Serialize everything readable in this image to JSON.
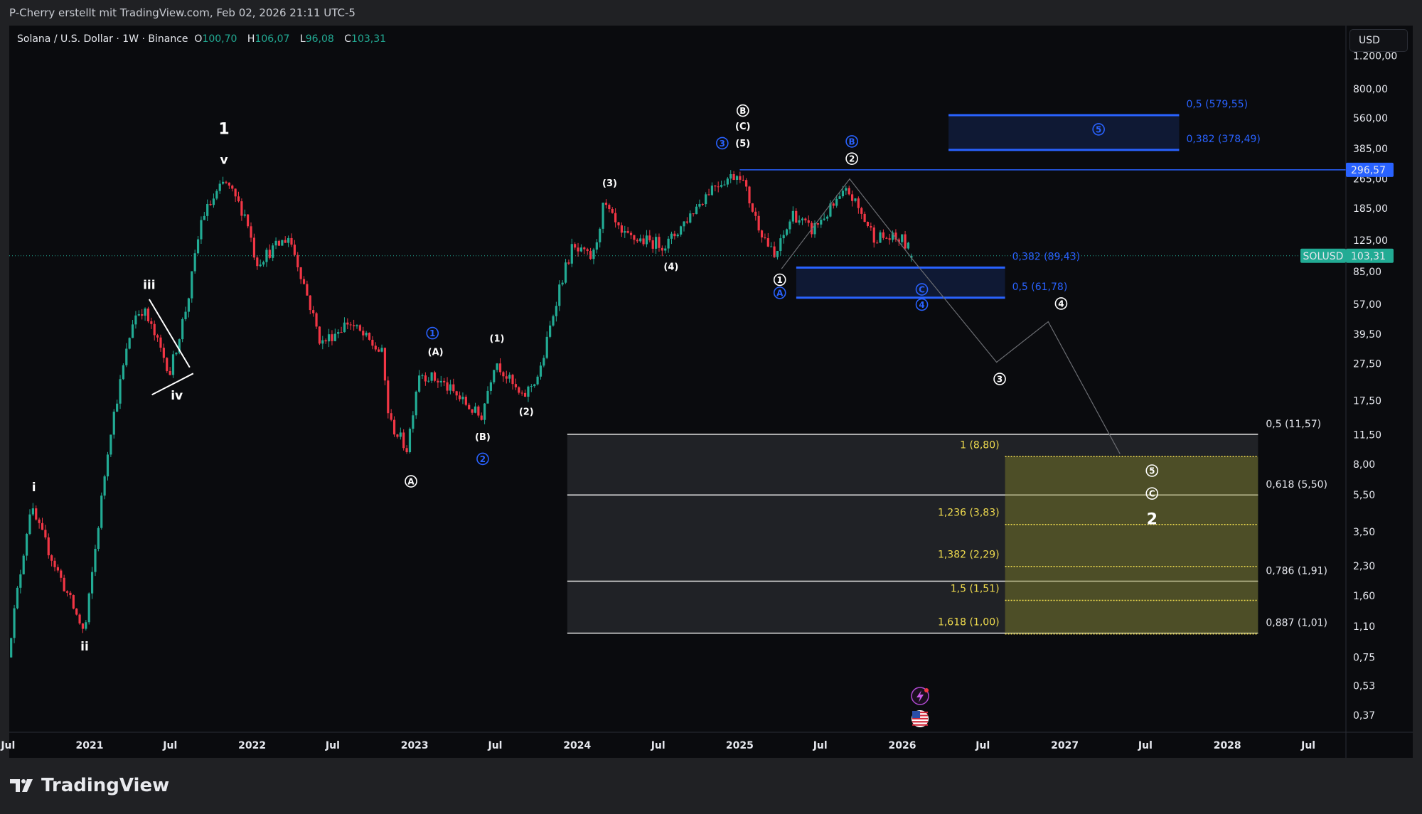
{
  "header": {
    "credit": "P-Cherry erstellt mit TradingView.com, Feb 02, 2026 21:11 UTC-5"
  },
  "legend": {
    "symbol": "Solana / U.S. Dollar · 1W · Binance",
    "o_label": "O",
    "o": "100,70",
    "h_label": "H",
    "h": "106,07",
    "l_label": "L",
    "l": "96,08",
    "c_label": "C",
    "c": "103,31"
  },
  "currency_button": "USD",
  "footer": {
    "brand": "TradingView"
  },
  "colors": {
    "up": "#22ab94",
    "down": "#f23645",
    "blue": "#2962ff",
    "yellow": "#f0dc4e",
    "background": "#0a0b0e"
  },
  "chart_data": {
    "type": "candlestick",
    "symbol": "SOLUSD",
    "interval": "1W",
    "y_scale": "log",
    "ylim": [
      0.33,
      1300
    ],
    "xlim": [
      "2020-07-01",
      "2028-09-01"
    ],
    "last": {
      "open": 100.7,
      "high": 106.07,
      "low": 96.08,
      "close": 103.31,
      "label": "SOLUSD",
      "value_label": "103,31"
    },
    "price_path": [
      [
        "2020-07-01",
        0.8
      ],
      [
        "2020-08-20",
        4.7
      ],
      [
        "2020-12-20",
        1.0
      ],
      [
        "2021-02-15",
        11.5
      ],
      [
        "2021-04-10",
        49
      ],
      [
        "2021-05-01",
        54
      ],
      [
        "2021-07-01",
        24.8
      ],
      [
        "2021-08-10",
        60
      ],
      [
        "2021-09-10",
        165
      ],
      [
        "2021-11-01",
        257
      ],
      [
        "2021-12-20",
        165
      ],
      [
        "2022-01-10",
        95
      ],
      [
        "2022-03-25",
        131
      ],
      [
        "2022-04-20",
        84
      ],
      [
        "2022-06-05",
        35
      ],
      [
        "2022-08-05",
        46
      ],
      [
        "2022-10-20",
        31
      ],
      [
        "2022-11-05",
        13.5
      ],
      [
        "2022-12-15",
        9.7
      ],
      [
        "2023-01-10",
        24.8
      ],
      [
        "2023-03-01",
        22
      ],
      [
        "2023-05-30",
        14.2
      ],
      [
        "2023-07-01",
        29
      ],
      [
        "2023-08-30",
        17.8
      ],
      [
        "2023-10-10",
        24.8
      ],
      [
        "2023-11-20",
        68
      ],
      [
        "2023-12-20",
        112
      ],
      [
        "2024-02-05",
        100
      ],
      [
        "2024-03-01",
        195
      ],
      [
        "2024-04-10",
        131
      ],
      [
        "2024-07-20",
        118
      ],
      [
        "2024-11-01",
        245
      ],
      [
        "2025-01-01",
        287
      ],
      [
        "2025-02-05",
        165
      ],
      [
        "2025-03-20",
        100
      ],
      [
        "2025-05-01",
        174
      ],
      [
        "2025-06-10",
        140
      ],
      [
        "2025-09-01",
        230
      ],
      [
        "2025-10-30",
        131
      ],
      [
        "2026-01-01",
        125
      ],
      [
        "2026-01-26",
        103.31
      ]
    ],
    "y_ticks": [
      {
        "value": 1200,
        "label": "1.200,00"
      },
      {
        "value": 800,
        "label": "800,00"
      },
      {
        "value": 560,
        "label": "560,00"
      },
      {
        "value": 385,
        "label": "385,00"
      },
      {
        "value": 265,
        "label": "265,00"
      },
      {
        "value": 185,
        "label": "185,00"
      },
      {
        "value": 125,
        "label": "125,00"
      },
      {
        "value": 85,
        "label": "85,00"
      },
      {
        "value": 57,
        "label": "57,00"
      },
      {
        "value": 39.5,
        "label": "39,50"
      },
      {
        "value": 27.5,
        "label": "27,50"
      },
      {
        "value": 17.5,
        "label": "17,50"
      },
      {
        "value": 11.5,
        "label": "11,50"
      },
      {
        "value": 8,
        "label": "8,00"
      },
      {
        "value": 5.5,
        "label": "5,50"
      },
      {
        "value": 3.5,
        "label": "3,50"
      },
      {
        "value": 2.3,
        "label": "2,30"
      },
      {
        "value": 1.6,
        "label": "1,60"
      },
      {
        "value": 1.1,
        "label": "1,10"
      },
      {
        "value": 0.75,
        "label": "0,75"
      },
      {
        "value": 0.53,
        "label": "0,53"
      },
      {
        "value": 0.37,
        "label": "0,37"
      }
    ],
    "x_ticks": [
      {
        "date": "2020-07-01",
        "label": "Jul"
      },
      {
        "date": "2021-01-01",
        "label": "2021"
      },
      {
        "date": "2021-07-01",
        "label": "Jul"
      },
      {
        "date": "2022-01-01",
        "label": "2022"
      },
      {
        "date": "2022-07-01",
        "label": "Jul"
      },
      {
        "date": "2023-01-01",
        "label": "2023"
      },
      {
        "date": "2023-07-01",
        "label": "Jul"
      },
      {
        "date": "2024-01-01",
        "label": "2024"
      },
      {
        "date": "2024-07-01",
        "label": "Jul"
      },
      {
        "date": "2025-01-01",
        "label": "2025"
      },
      {
        "date": "2025-07-01",
        "label": "Jul"
      },
      {
        "date": "2026-01-01",
        "label": "2026"
      },
      {
        "date": "2026-07-01",
        "label": "Jul"
      },
      {
        "date": "2027-01-01",
        "label": "2027"
      },
      {
        "date": "2027-07-01",
        "label": "Jul"
      },
      {
        "date": "2028-01-01",
        "label": "2028"
      },
      {
        "date": "2028-07-01",
        "label": "Jul"
      }
    ],
    "horizontal_line": {
      "price": 296.57,
      "label": "296,57",
      "from": "2025-01-01"
    },
    "target_zone_upper": {
      "from": "2026-04-15",
      "to": "2027-09-15",
      "top": 579.55,
      "bottom": 378.49,
      "levels": [
        {
          "price": 579.55,
          "label": "0,5 (579,55)"
        },
        {
          "price": 378.49,
          "label": "0,382 (378,49)"
        }
      ]
    },
    "target_zone_lower": {
      "from": "2025-05-08",
      "to": "2026-08-20",
      "top": 89.43,
      "bottom": 61.78,
      "levels": [
        {
          "price": 89.43,
          "label": "0,382 (89,43)"
        },
        {
          "price": 61.78,
          "label": "0,5 (61,78)"
        }
      ]
    },
    "retracement_box": {
      "from": "2023-12-10",
      "to": "2028-03-10",
      "levels": [
        {
          "price": 11.57,
          "label": "0,5 (11,57)"
        },
        {
          "price": 5.5,
          "label": "0,618 (5,50)"
        },
        {
          "price": 1.91,
          "label": "0,786 (1,91)"
        },
        {
          "price": 1.01,
          "label": "0,887 (1,01)"
        }
      ]
    },
    "extension_box": {
      "from": "2026-08-20",
      "to": "2028-03-10",
      "levels": [
        {
          "price": 8.8,
          "label": "1 (8,80)"
        },
        {
          "price": 3.83,
          "label": "1,236 (3,83)"
        },
        {
          "price": 2.29,
          "label": "1,382 (2,29)"
        },
        {
          "price": 1.51,
          "label": "1,5 (1,51)"
        },
        {
          "price": 1.0,
          "label": "1,618 (1,00)"
        }
      ]
    },
    "projection_path": [
      [
        "2025-04-05",
        88
      ],
      [
        "2025-09-05",
        265
      ],
      [
        "2026-01-30",
        95
      ],
      [
        "2026-08-01",
        28
      ],
      [
        "2026-11-25",
        46
      ],
      [
        "2027-05-05",
        9.1
      ]
    ],
    "triangle_lines": [
      [
        [
          "2021-05-15",
          60.6
        ],
        [
          "2021-08-14",
          26.3
        ]
      ],
      [
        [
          "2021-05-21",
          18.8
        ],
        [
          "2021-08-22",
          24.4
        ]
      ]
    ],
    "wave_labels": [
      {
        "text": "1",
        "date": "2021-10-30",
        "price": 491,
        "style": "large",
        "color": "white"
      },
      {
        "text": "v",
        "date": "2021-10-30",
        "price": 336,
        "style": "plain",
        "color": "white"
      },
      {
        "text": "iii",
        "date": "2021-05-15",
        "price": 72.5,
        "style": "plain",
        "color": "white"
      },
      {
        "text": "iv",
        "date": "2021-07-16",
        "price": 18.7,
        "style": "plain",
        "color": "white"
      },
      {
        "text": "i",
        "date": "2020-08-28",
        "price": 6.07,
        "style": "plain",
        "color": "white"
      },
      {
        "text": "ii",
        "date": "2020-12-20",
        "price": 0.86,
        "style": "plain",
        "color": "white"
      },
      {
        "text": "1",
        "date": "2023-02-10",
        "price": 40,
        "style": "circled",
        "color": "blue"
      },
      {
        "text": "(A)",
        "date": "2023-02-17",
        "price": 31.8,
        "style": "small",
        "color": "white"
      },
      {
        "text": "(1)",
        "date": "2023-07-05",
        "price": 37.5,
        "style": "small",
        "color": "white"
      },
      {
        "text": "(B)",
        "date": "2023-06-03",
        "price": 11.2,
        "style": "small",
        "color": "white"
      },
      {
        "text": "2",
        "date": "2023-06-03",
        "price": 8.56,
        "style": "circled",
        "color": "blue"
      },
      {
        "text": "(2)",
        "date": "2023-09-09",
        "price": 15.3,
        "style": "small",
        "color": "white"
      },
      {
        "text": "A",
        "date": "2022-12-24",
        "price": 6.5,
        "style": "circled",
        "color": "white"
      },
      {
        "text": "(3)",
        "date": "2024-03-14",
        "price": 252,
        "style": "small",
        "color": "white"
      },
      {
        "text": "(4)",
        "date": "2024-07-30",
        "price": 90.5,
        "style": "small",
        "color": "white"
      },
      {
        "text": "B",
        "date": "2025-01-08",
        "price": 613,
        "style": "circled",
        "color": "white"
      },
      {
        "text": "(C)",
        "date": "2025-01-08",
        "price": 507,
        "style": "small",
        "color": "white"
      },
      {
        "text": "(5)",
        "date": "2025-01-08",
        "price": 411,
        "style": "small",
        "color": "white"
      },
      {
        "text": "3",
        "date": "2024-11-22",
        "price": 411,
        "style": "circled",
        "color": "blue"
      },
      {
        "text": "B",
        "date": "2025-09-10",
        "price": 420,
        "style": "circled",
        "color": "blue"
      },
      {
        "text": "2",
        "date": "2025-09-10",
        "price": 340,
        "style": "circled",
        "color": "white"
      },
      {
        "text": "1",
        "date": "2025-04-01",
        "price": 77,
        "style": "circled",
        "color": "white"
      },
      {
        "text": "A",
        "date": "2025-04-01",
        "price": 65.6,
        "style": "circled",
        "color": "blue"
      },
      {
        "text": "C",
        "date": "2026-02-14",
        "price": 68.4,
        "style": "circled",
        "color": "blue"
      },
      {
        "text": "4",
        "date": "2026-02-14",
        "price": 56.8,
        "style": "circled",
        "color": "blue"
      },
      {
        "text": "4",
        "date": "2026-12-24",
        "price": 57.5,
        "style": "circled",
        "color": "white"
      },
      {
        "text": "3",
        "date": "2026-08-08",
        "price": 22.8,
        "style": "circled",
        "color": "white"
      },
      {
        "text": "5",
        "date": "2027-03-18",
        "price": 487,
        "style": "circled",
        "color": "blue"
      },
      {
        "text": "5",
        "date": "2027-07-16",
        "price": 7.41,
        "style": "circled",
        "color": "white"
      },
      {
        "text": "C",
        "date": "2027-07-16",
        "price": 5.6,
        "style": "circled",
        "color": "white"
      },
      {
        "text": "2",
        "date": "2027-07-16",
        "price": 4.1,
        "style": "large",
        "color": "white"
      }
    ],
    "event_icons": [
      {
        "icon": "lightning-event-icon",
        "date": "2026-02-10"
      },
      {
        "icon": "us-flag-event-icon",
        "date": "2026-02-10"
      }
    ]
  }
}
